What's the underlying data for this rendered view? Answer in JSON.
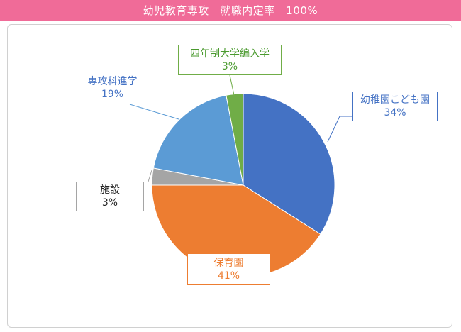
{
  "header": {
    "title": "幼児教育専攻　就職内定率　100%"
  },
  "chart_data": {
    "type": "pie",
    "title": "幼児教育専攻　就職内定率　100%",
    "slices": [
      {
        "label": "幼稚園こども園",
        "value": 34,
        "pct": "34%",
        "color": "#4472c4"
      },
      {
        "label": "保育園",
        "value": 41,
        "pct": "41%",
        "color": "#ed7d31"
      },
      {
        "label": "施設",
        "value": 3,
        "pct": "3%",
        "color": "#a5a5a5"
      },
      {
        "label": "専攻科進学",
        "value": 19,
        "pct": "19%",
        "color": "#5b9bd5"
      },
      {
        "label": "四年制大学編入学",
        "value": 3,
        "pct": "3%",
        "color": "#70ad47"
      }
    ]
  }
}
